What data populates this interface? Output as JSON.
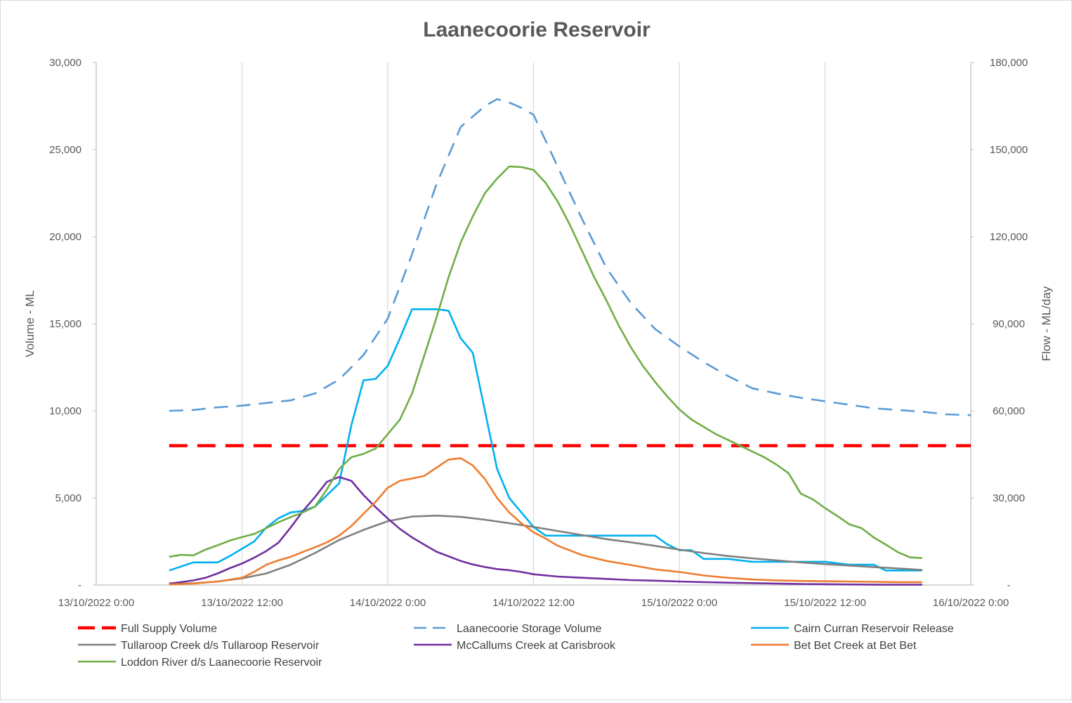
{
  "chart_data": {
    "type": "line",
    "title": "Laanecoorie Reservoir",
    "ylabel_left": "Volume - ML",
    "ylabel_right": "Flow - ML/day",
    "x_unit": "hours since 13/10/2022 0:00",
    "x_ticks": [
      "13/10/2022 0:00",
      "13/10/2022 12:00",
      "14/10/2022 0:00",
      "14/10/2022 12:00",
      "15/10/2022 0:00",
      "15/10/2022 12:00",
      "16/10/2022 0:00"
    ],
    "xlim": [
      0,
      72
    ],
    "y_left_ticks": [
      "-",
      "5,000",
      "10,000",
      "15,000",
      "20,000",
      "25,000",
      "30,000"
    ],
    "y_left_lim": [
      0,
      30000
    ],
    "y_right_ticks": [
      "-",
      "30,000",
      "60,000",
      "90,000",
      "120,000",
      "150,000",
      "180,000"
    ],
    "y_right_lim": [
      0,
      180000
    ],
    "grid": "vertical",
    "legend_position": "bottom",
    "series": [
      {
        "name": "Full Supply Volume",
        "axis": "left",
        "color": "#ff0000",
        "dash": "dashed-thick",
        "x": [
          6,
          72
        ],
        "y": [
          8000,
          8000
        ]
      },
      {
        "name": "Laanecoorie Storage Volume",
        "axis": "left",
        "color": "#5b9bd5",
        "dash": "dashed",
        "x": [
          6,
          8,
          10,
          12,
          14,
          16,
          18,
          20,
          22,
          24,
          26,
          28,
          30,
          32,
          33,
          34,
          35,
          36,
          38,
          40,
          42,
          44,
          46,
          48,
          50,
          52,
          54,
          56,
          58,
          60,
          62,
          64,
          66,
          68,
          70,
          72
        ],
        "y": [
          10000,
          10050,
          10200,
          10300,
          10450,
          10600,
          11000,
          11800,
          13200,
          15300,
          19000,
          23000,
          26300,
          27500,
          27900,
          27700,
          27400,
          27000,
          24000,
          21000,
          18200,
          16200,
          14700,
          13700,
          12800,
          12000,
          11300,
          11000,
          10750,
          10550,
          10350,
          10150,
          10050,
          9950,
          9800,
          9750
        ]
      },
      {
        "name": "Cairn Curran Reservoir Release",
        "axis": "right",
        "color": "#00b0f0",
        "dash": "solid",
        "x": [
          6,
          8,
          10,
          11,
          13,
          14,
          15,
          16,
          17,
          18,
          19,
          20,
          21,
          22,
          23,
          24,
          25,
          26,
          28,
          29,
          30,
          31,
          32,
          33,
          34,
          35,
          36,
          37,
          38,
          40,
          42,
          44,
          46,
          47,
          48,
          49,
          50,
          51,
          52,
          54,
          56,
          58,
          60,
          62,
          64,
          65,
          66,
          68
        ],
        "y": [
          5000,
          7800,
          7800,
          10000,
          15000,
          19800,
          23000,
          25000,
          25500,
          27000,
          31000,
          35000,
          55000,
          70500,
          71000,
          75500,
          85000,
          95000,
          95000,
          94500,
          85000,
          80000,
          60000,
          40000,
          30000,
          25000,
          20000,
          17000,
          17000,
          17000,
          17000,
          17000,
          17000,
          14000,
          12000,
          12000,
          9000,
          9000,
          9000,
          8000,
          8000,
          8000,
          8000,
          7000,
          7000,
          5000,
          5000,
          5000
        ]
      },
      {
        "name": "Tullaroop Creek d/s Tullaroop Reservoir",
        "axis": "right",
        "color": "#7f7f7f",
        "dash": "solid",
        "x": [
          6,
          8,
          10,
          12,
          14,
          16,
          18,
          20,
          22,
          24,
          26,
          28,
          30,
          32,
          34,
          36,
          38,
          40,
          42,
          44,
          46,
          48,
          50,
          52,
          54,
          56,
          58,
          60,
          62,
          64,
          66,
          68
        ],
        "y": [
          300,
          600,
          1200,
          2300,
          4000,
          7000,
          11000,
          15500,
          19000,
          22000,
          23600,
          23900,
          23500,
          22500,
          21300,
          20000,
          18600,
          17200,
          15800,
          14700,
          13500,
          12200,
          11000,
          10000,
          9200,
          8500,
          7800,
          7200,
          6700,
          6200,
          5700,
          5200
        ]
      },
      {
        "name": "McCallums Creek at Carisbrook",
        "axis": "right",
        "color": "#7030a0",
        "dash": "solid",
        "x": [
          6,
          7,
          8,
          9,
          10,
          11,
          12,
          13,
          14,
          15,
          16,
          17,
          18,
          19,
          20,
          21,
          22,
          23,
          24,
          25,
          26,
          27,
          28,
          29,
          30,
          31,
          32,
          33,
          34,
          35,
          36,
          38,
          40,
          42,
          44,
          46,
          48,
          50,
          52,
          54,
          56,
          58,
          60,
          62,
          64,
          66,
          68
        ],
        "y": [
          500,
          1000,
          1600,
          2500,
          4000,
          5800,
          7400,
          9400,
          11700,
          14600,
          19800,
          25400,
          30300,
          35600,
          37200,
          35900,
          31000,
          26800,
          22900,
          19300,
          16400,
          13900,
          11500,
          9900,
          8300,
          7100,
          6200,
          5500,
          5100,
          4500,
          3700,
          2900,
          2500,
          2100,
          1700,
          1500,
          1200,
          1000,
          800,
          650,
          500,
          350,
          300,
          200,
          150,
          100,
          100
        ]
      },
      {
        "name": "Bet Bet Creek at Bet Bet",
        "axis": "right",
        "color": "#ed7d31",
        "dash": "solid",
        "x": [
          6,
          8,
          10,
          12,
          13,
          14,
          15,
          16,
          17,
          18,
          19,
          20,
          21,
          22,
          23,
          24,
          25,
          26,
          27,
          28,
          29,
          30,
          31,
          32,
          33,
          34,
          35,
          36,
          37,
          38,
          40,
          42,
          44,
          46,
          48,
          50,
          52,
          54,
          56,
          58,
          60,
          62,
          64,
          66,
          68
        ],
        "y": [
          200,
          500,
          1200,
          2500,
          4500,
          7000,
          8500,
          9700,
          11400,
          13000,
          14700,
          17000,
          20300,
          24500,
          28700,
          33500,
          35900,
          36700,
          37600,
          40400,
          43200,
          43700,
          41200,
          36500,
          30000,
          25000,
          21300,
          18200,
          16000,
          13500,
          10300,
          8300,
          6900,
          5400,
          4500,
          3300,
          2500,
          1900,
          1600,
          1400,
          1300,
          1200,
          1100,
          1000,
          1000
        ]
      },
      {
        "name": "Loddon River d/s Laanecoorie Reservoir",
        "axis": "right",
        "color": "#70ad47",
        "dash": "solid",
        "x": [
          6,
          7,
          8,
          9,
          10,
          11,
          12,
          13,
          14,
          15,
          16,
          17,
          18,
          19,
          20,
          21,
          22,
          23,
          24,
          25,
          26,
          27,
          28,
          29,
          30,
          31,
          32,
          33,
          34,
          35,
          36,
          37,
          38,
          39,
          40,
          41,
          42,
          43,
          44,
          45,
          46,
          47,
          48,
          49,
          50,
          51,
          52,
          53,
          54,
          55,
          56,
          57,
          58,
          59,
          60,
          61,
          62,
          63,
          64,
          65,
          66,
          67,
          68
        ],
        "y": [
          9700,
          10400,
          10200,
          12200,
          13700,
          15300,
          16500,
          17600,
          19600,
          21600,
          23400,
          25000,
          27000,
          33000,
          40000,
          44000,
          45200,
          47000,
          52000,
          57000,
          66000,
          79000,
          92000,
          106000,
          118000,
          127000,
          135000,
          140000,
          144200,
          144000,
          143000,
          138500,
          132000,
          124000,
          115000,
          106000,
          98000,
          89500,
          82000,
          75500,
          70000,
          65000,
          60500,
          57000,
          54500,
          52000,
          50000,
          48000,
          46000,
          44000,
          41500,
          38500,
          31500,
          29500,
          26500,
          23800,
          20900,
          19600,
          16400,
          13900,
          11300,
          9500,
          9300
        ]
      }
    ]
  }
}
